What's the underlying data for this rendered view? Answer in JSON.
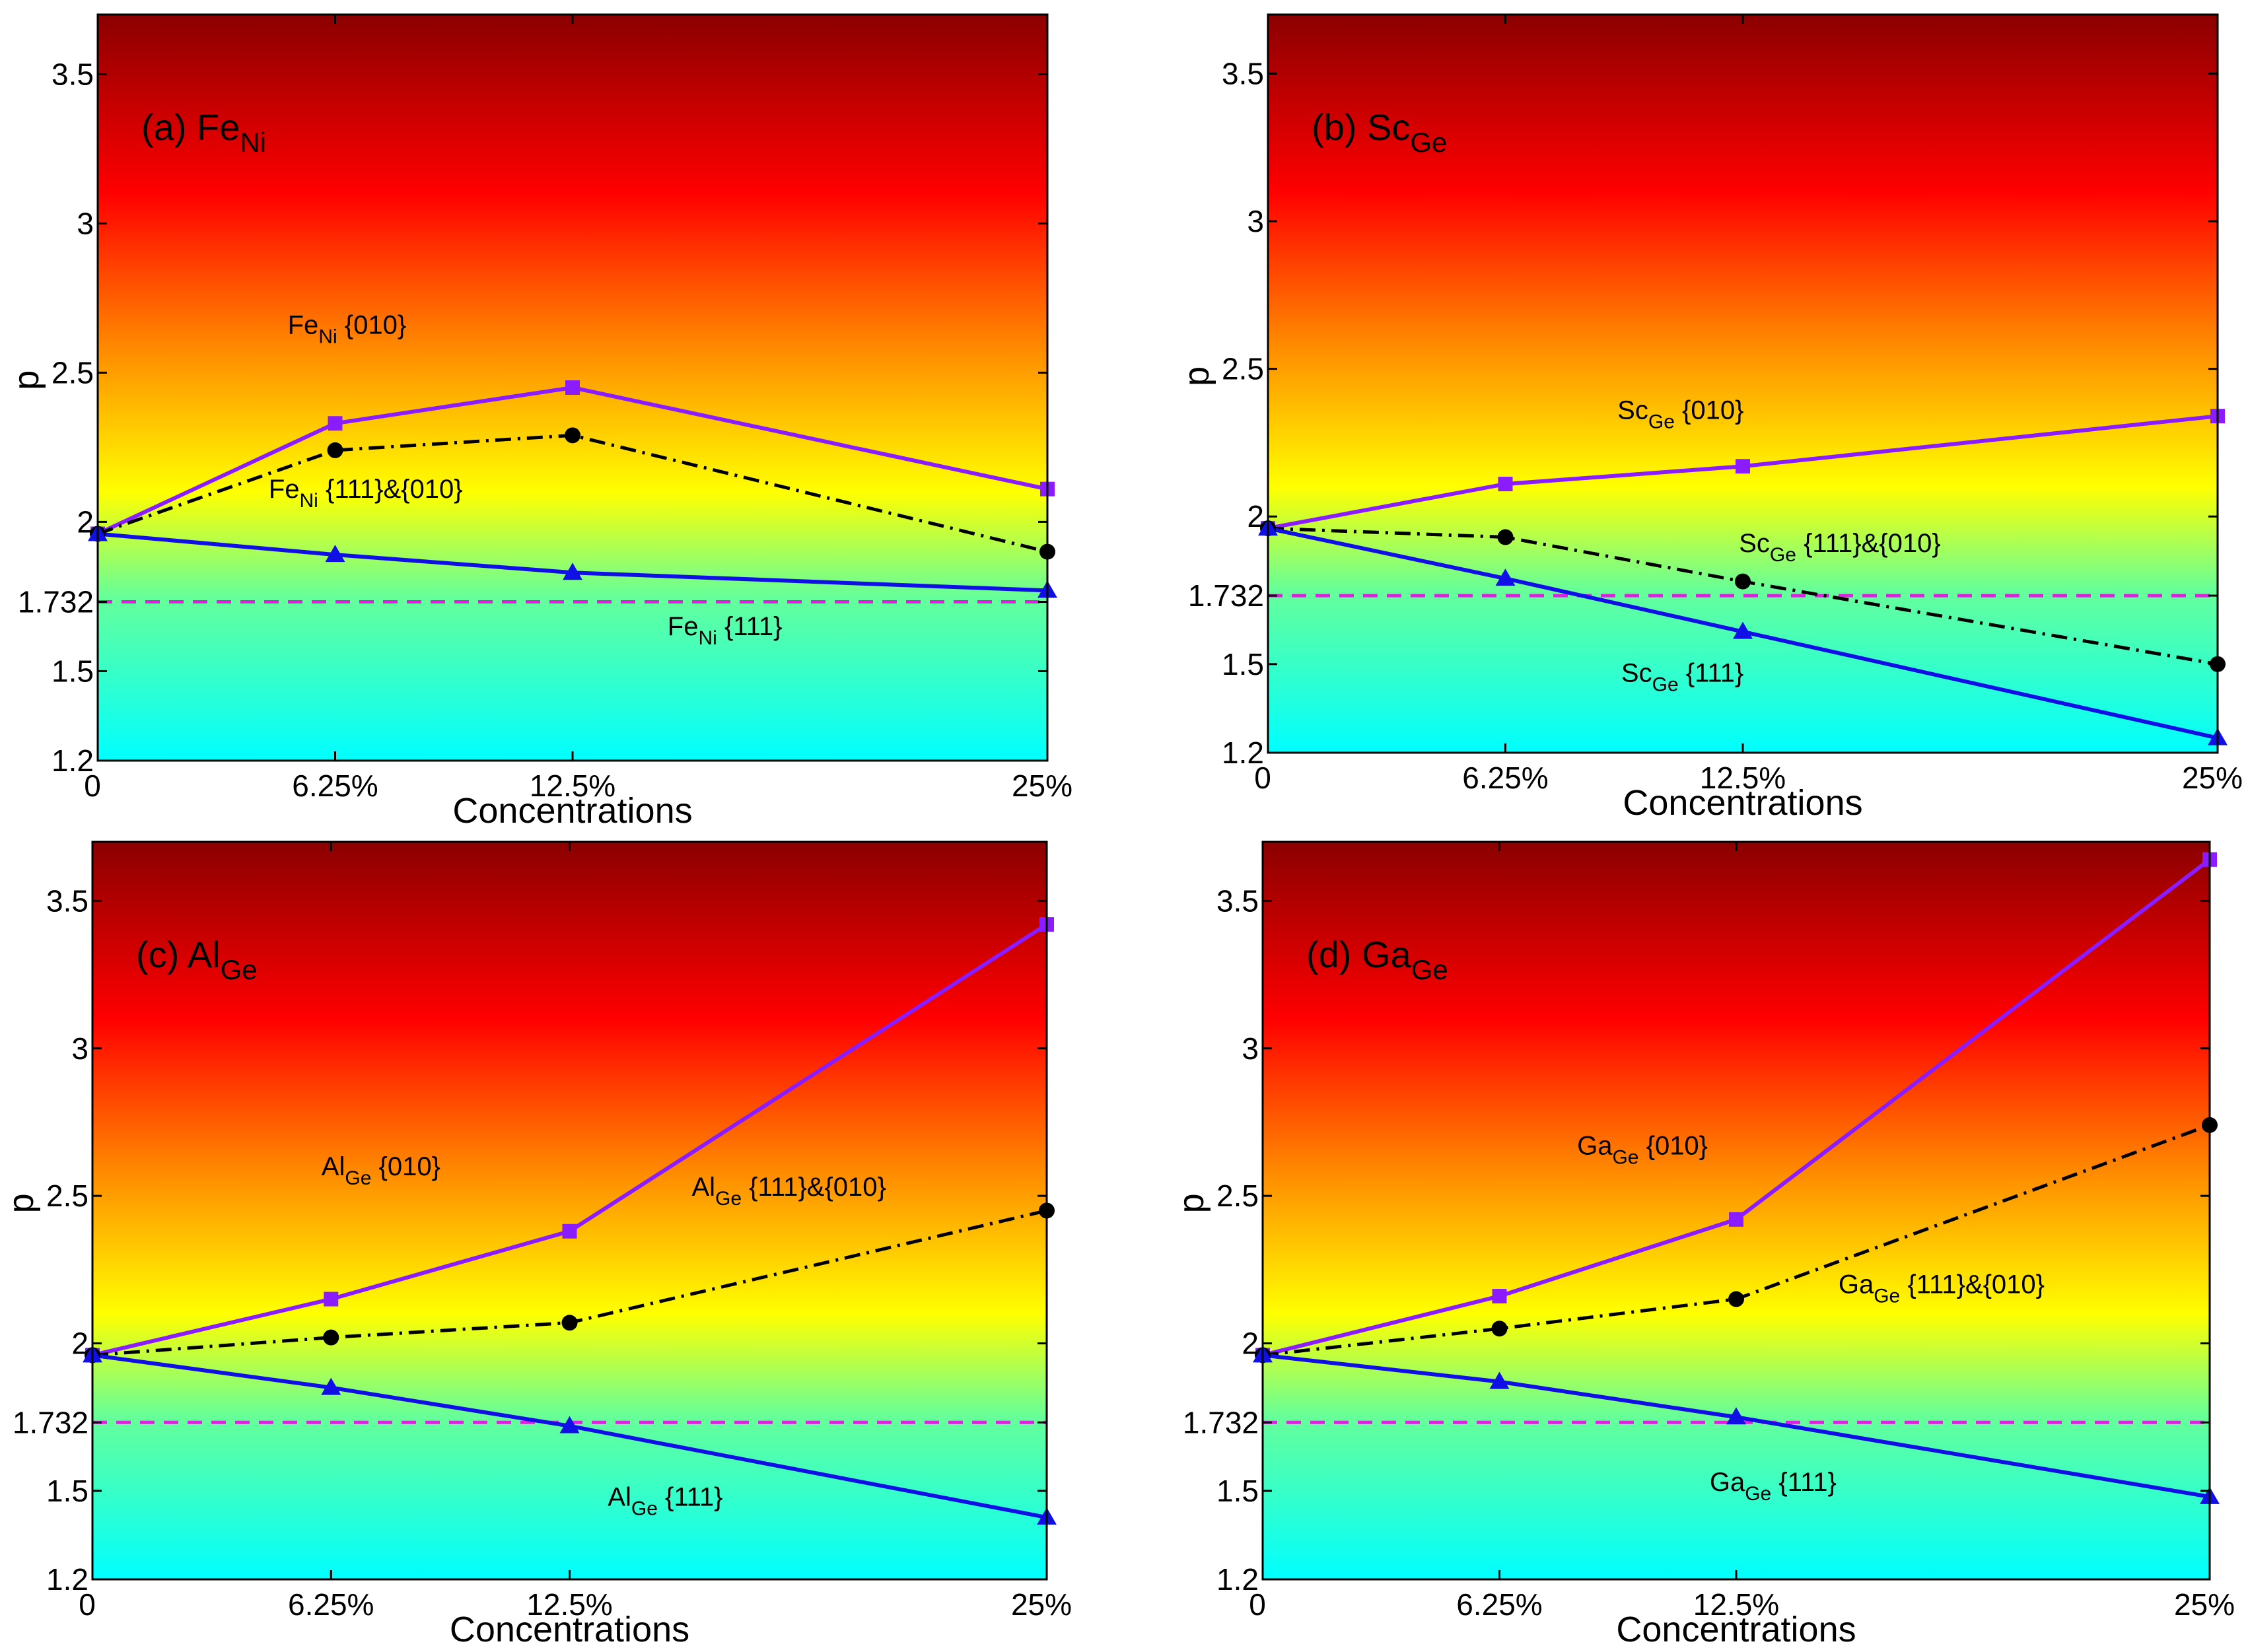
{
  "colors": {
    "series_010": "#8a1cff",
    "series_111": "#1010e6",
    "series_combo": "#000000",
    "ref_line": "#e020e0",
    "gradient": [
      "#00ffff",
      "#66ff99",
      "#ffff00",
      "#ff8c00",
      "#ff0000",
      "#8b0000"
    ]
  },
  "chart_data": [
    {
      "type": "line",
      "panel_label": "(a) Fe",
      "panel_sub": "Ni",
      "xlabel": "Concentrations",
      "ylabel": "p",
      "categories": [
        "0",
        "6.25%",
        "12.5%",
        "25%"
      ],
      "x": [
        0,
        6.25,
        12.5,
        25
      ],
      "ylim": [
        1.2,
        3.7
      ],
      "yticks": [
        1.2,
        1.5,
        1.732,
        2,
        2.5,
        3,
        3.5
      ],
      "ytick_labels": [
        "1.2",
        "1.5",
        "1.732",
        "2",
        "2.5",
        "3",
        "3.5"
      ],
      "ref_line": 1.732,
      "series": [
        {
          "name": "Fe_Ni {010}",
          "key": "s010",
          "marker": "square",
          "values": [
            1.96,
            2.33,
            2.45,
            2.11
          ]
        },
        {
          "name": "Fe_Ni {111}&{010}",
          "key": "combo",
          "marker": "circle",
          "values": [
            1.96,
            2.24,
            2.29,
            1.9
          ]
        },
        {
          "name": "Fe_Ni {111}",
          "key": "s111",
          "marker": "triangle",
          "values": [
            1.96,
            1.89,
            1.83,
            1.77
          ]
        }
      ],
      "annotations": [
        {
          "pre": "Fe",
          "sub": "Ni",
          "post": " {010}",
          "anchor": [
            5,
            2.63
          ]
        },
        {
          "pre": "Fe",
          "sub": "Ni",
          "post": " {111}&{010}",
          "anchor": [
            4.5,
            2.08
          ]
        },
        {
          "pre": "Fe",
          "sub": "Ni",
          "post": " {111}",
          "anchor": [
            15,
            1.62
          ]
        }
      ]
    },
    {
      "type": "line",
      "panel_label": "(b) Sc",
      "panel_sub": "Ge",
      "xlabel": "Concentrations",
      "ylabel": "p",
      "categories": [
        "0",
        "6.25%",
        "12.5%",
        "25%"
      ],
      "x": [
        0,
        6.25,
        12.5,
        25
      ],
      "ylim": [
        1.2,
        3.7
      ],
      "yticks": [
        1.2,
        1.5,
        1.732,
        2,
        2.5,
        3,
        3.5
      ],
      "ytick_labels": [
        "1.2",
        "1.5",
        "1.732",
        "2",
        "2.5",
        "3",
        "3.5"
      ],
      "ref_line": 1.732,
      "series": [
        {
          "name": "Sc_Ge {010}",
          "key": "s010",
          "marker": "square",
          "values": [
            1.96,
            2.11,
            2.17,
            2.34
          ]
        },
        {
          "name": "Sc_Ge {111}&{010}",
          "key": "combo",
          "marker": "circle",
          "values": [
            1.96,
            1.93,
            1.78,
            1.5
          ]
        },
        {
          "name": "Sc_Ge {111}",
          "key": "s111",
          "marker": "triangle",
          "values": [
            1.96,
            1.79,
            1.61,
            1.25
          ]
        }
      ],
      "annotations": [
        {
          "pre": "Sc",
          "sub": "Ge",
          "post": " {010}",
          "anchor": [
            9.2,
            2.33
          ]
        },
        {
          "pre": "Sc",
          "sub": "Ge",
          "post": " {111}&{010}",
          "anchor": [
            12.4,
            1.88
          ]
        },
        {
          "pre": "Sc",
          "sub": "Ge",
          "post": " {111}",
          "anchor": [
            9.3,
            1.44
          ]
        }
      ]
    },
    {
      "type": "line",
      "panel_label": "(c) Al",
      "panel_sub": "Ge",
      "xlabel": "Concentrations",
      "ylabel": "p",
      "categories": [
        "0",
        "6.25%",
        "12.5%",
        "25%"
      ],
      "x": [
        0,
        6.25,
        12.5,
        25
      ],
      "ylim": [
        1.2,
        3.7
      ],
      "yticks": [
        1.2,
        1.5,
        1.732,
        2,
        2.5,
        3,
        3.5
      ],
      "ytick_labels": [
        "1.2",
        "1.5",
        "1.732",
        "2",
        "2.5",
        "3",
        "3.5"
      ],
      "ref_line": 1.732,
      "series": [
        {
          "name": "Al_Ge {010}",
          "key": "s010",
          "marker": "square",
          "values": [
            1.96,
            2.15,
            2.38,
            3.42
          ]
        },
        {
          "name": "Al_Ge {111}&{010}",
          "key": "combo",
          "marker": "circle",
          "values": [
            1.96,
            2.02,
            2.07,
            2.45
          ]
        },
        {
          "name": "Al_Ge {111}",
          "key": "s111",
          "marker": "triangle",
          "values": [
            1.96,
            1.85,
            1.72,
            1.41
          ]
        }
      ],
      "annotations": [
        {
          "pre": "Al",
          "sub": "Ge",
          "post": " {010}",
          "anchor": [
            6,
            2.57
          ]
        },
        {
          "pre": "Al",
          "sub": "Ge",
          "post": " {111}&{010}",
          "anchor": [
            15.7,
            2.5
          ]
        },
        {
          "pre": "Al",
          "sub": "Ge",
          "post": " {111}",
          "anchor": [
            13.5,
            1.45
          ]
        }
      ]
    },
    {
      "type": "line",
      "panel_label": "(d) Ga",
      "panel_sub": "Ge",
      "xlabel": "Concentrations",
      "ylabel": "p",
      "categories": [
        "0",
        "6.25%",
        "12.5%",
        "25%"
      ],
      "x": [
        0,
        6.25,
        12.5,
        25
      ],
      "ylim": [
        1.2,
        3.7
      ],
      "yticks": [
        1.2,
        1.5,
        1.732,
        2,
        2.5,
        3,
        3.5
      ],
      "ytick_labels": [
        "1.2",
        "1.5",
        "1.732",
        "2",
        "2.5",
        "3",
        "3.5"
      ],
      "ref_line": 1.732,
      "series": [
        {
          "name": "Ga_Ge {010}",
          "key": "s010",
          "marker": "square",
          "values": [
            1.96,
            2.16,
            2.42,
            3.64
          ]
        },
        {
          "name": "Ga_Ge {111}&{010}",
          "key": "combo",
          "marker": "circle",
          "values": [
            1.96,
            2.05,
            2.15,
            2.74
          ]
        },
        {
          "name": "Ga_Ge {111}",
          "key": "s111",
          "marker": "triangle",
          "values": [
            1.96,
            1.87,
            1.75,
            1.48
          ]
        }
      ],
      "annotations": [
        {
          "pre": "Ga",
          "sub": "Ge",
          "post": " {010}",
          "anchor": [
            8.3,
            2.64
          ]
        },
        {
          "pre": "Ga",
          "sub": "Ge",
          "post": " {111}&{010}",
          "anchor": [
            15.2,
            2.17
          ]
        },
        {
          "pre": "Ga",
          "sub": "Ge",
          "post": " {111}",
          "anchor": [
            11.8,
            1.5
          ]
        }
      ]
    }
  ]
}
